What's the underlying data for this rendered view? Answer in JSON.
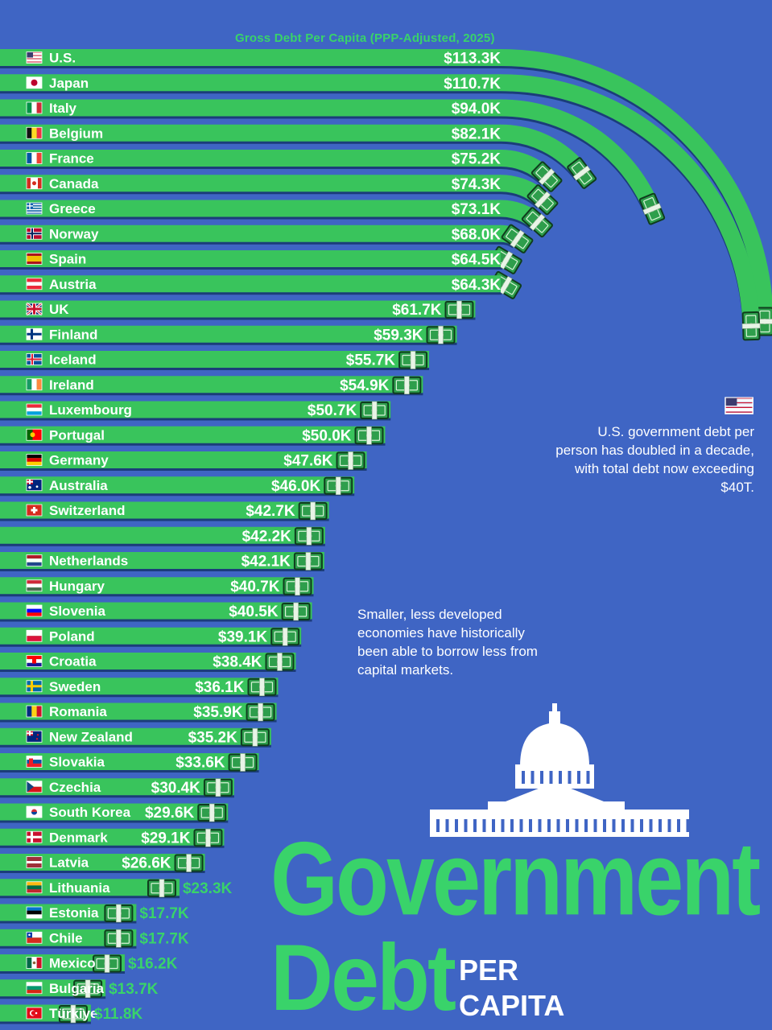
{
  "header": {
    "subtitle": "Gross Debt Per Capita (PPP-Adjusted, 2025)"
  },
  "notes": {
    "us": "U.S. government debt per person has doubled in a decade, with total debt now exceeding $40T.",
    "small": "Smaller, less developed economies have historically been able to borrow less from capital markets."
  },
  "title": {
    "line1": "Government",
    "line2": "Debt",
    "line3": "PER",
    "line4": "CAPITA"
  },
  "colors": {
    "background": "#3f65c4",
    "bar": "#39c45c",
    "bar_dark": "#1e7a38",
    "accent": "#39d36a"
  },
  "chart_data": {
    "type": "bar",
    "orientation": "horizontal",
    "unit": "USD thousands",
    "categories": [
      "U.S.",
      "Japan",
      "Italy",
      "Belgium",
      "France",
      "Canada",
      "Greece",
      "Norway",
      "Spain",
      "Austria",
      "UK",
      "Finland",
      "Iceland",
      "Ireland",
      "Luxembourg",
      "Portugal",
      "Germany",
      "Australia",
      "Switzerland",
      "",
      "Netherlands",
      "Hungary",
      "Slovenia",
      "Poland",
      "Croatia",
      "Sweden",
      "Romania",
      "New Zealand",
      "Slovakia",
      "Czechia",
      "South Korea",
      "Denmark",
      "Latvia",
      "Lithuania",
      "Estonia",
      "Chile",
      "Mexico",
      "Bulgaria",
      "Türkiye"
    ],
    "values": [
      113.3,
      110.7,
      94.0,
      82.1,
      75.2,
      74.3,
      73.1,
      68.0,
      64.5,
      64.3,
      61.7,
      59.3,
      55.7,
      54.9,
      50.7,
      50.0,
      47.6,
      46.0,
      42.7,
      42.2,
      42.1,
      40.7,
      40.5,
      39.1,
      38.4,
      36.1,
      35.9,
      35.2,
      33.6,
      30.4,
      29.6,
      29.1,
      26.6,
      23.3,
      17.7,
      17.7,
      16.2,
      13.7,
      11.8
    ],
    "labels": [
      "$113.3K",
      "$110.7K",
      "$94.0K",
      "$82.1K",
      "$75.2K",
      "$74.3K",
      "$73.1K",
      "$68.0K",
      "$64.5K",
      "$64.3K",
      "$61.7K",
      "$59.3K",
      "$55.7K",
      "$54.9K",
      "$50.7K",
      "$50.0K",
      "$47.6K",
      "$46.0K",
      "$42.7K",
      "$42.2K",
      "$42.1K",
      "$40.7K",
      "$40.5K",
      "$39.1K",
      "$38.4K",
      "$36.1K",
      "$35.9K",
      "$35.2K",
      "$33.6K",
      "$30.4K",
      "$29.6K",
      "$29.1K",
      "$26.6K",
      "$23.3K",
      "$17.7K",
      "$17.7K",
      "$16.2K",
      "$13.7K",
      "$11.8K"
    ],
    "flags": [
      "us",
      "jp",
      "it",
      "be",
      "fr",
      "ca",
      "gr",
      "no",
      "es",
      "at",
      "gb",
      "fi",
      "is",
      "ie",
      "lu",
      "pt",
      "de",
      "au",
      "ch",
      "blank",
      "nl",
      "hu",
      "si",
      "pl",
      "hr",
      "se",
      "ro",
      "nz",
      "sk",
      "cz",
      "kr",
      "dk",
      "lv",
      "lt",
      "ee",
      "cl",
      "mx",
      "bg",
      "tr"
    ],
    "value_label_outside": [
      "Lithuania",
      "Estonia",
      "Chile",
      "Mexico",
      "Bulgaria",
      "Türkiye"
    ],
    "curved_bars": [
      "U.S.",
      "Japan",
      "Italy",
      "Belgium",
      "France",
      "Canada",
      "Greece",
      "Norway",
      "Spain",
      "Austria"
    ]
  }
}
